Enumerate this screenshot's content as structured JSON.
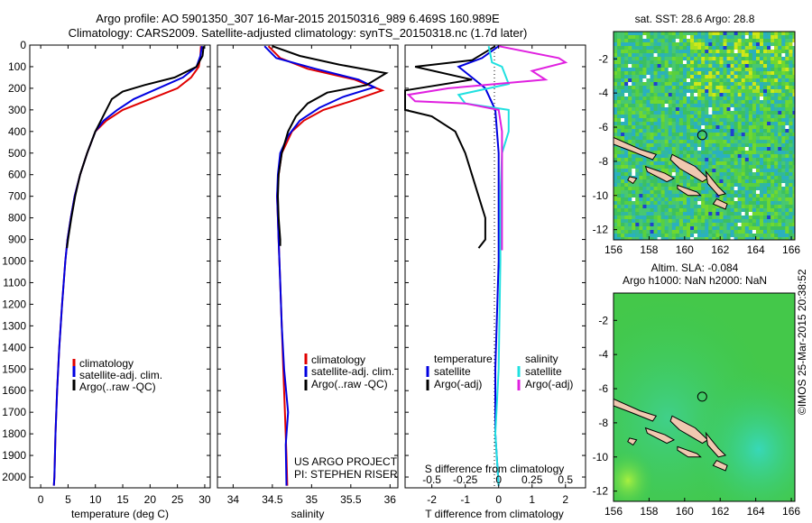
{
  "header": {
    "line1": "Argo profile: AO 5901350_307 16-Mar-2015 20150316_989 6.469S 160.989E",
    "line2": "Climatology: CARS2009. Satellite-adjusted climatology: synTS_20150318.nc (1.7d later)"
  },
  "colors": {
    "climatology": "#e00000",
    "satellite": "#0000e0",
    "argo": "#000000",
    "sal_sat": "#20e0e0",
    "sal_argo": "#e020e0"
  },
  "chart_data": [
    {
      "type": "line",
      "xlabel": "temperature (deg C)",
      "ylabel": "",
      "xlim": [
        -2,
        31
      ],
      "ylim": [
        2050,
        0
      ],
      "xticks": [
        0,
        5,
        10,
        15,
        20,
        25,
        30
      ],
      "yticks": [
        0,
        100,
        200,
        300,
        400,
        500,
        600,
        700,
        800,
        900,
        1000,
        1100,
        1200,
        1300,
        1400,
        1500,
        1600,
        1700,
        1800,
        1900,
        2000
      ],
      "legend": [
        "climatology",
        "satellite-adj. clim.",
        "Argo(..raw -QC)"
      ],
      "series": [
        {
          "name": "climatology",
          "color": "#e00000",
          "points": [
            [
              29.3,
              5
            ],
            [
              29.2,
              50
            ],
            [
              28.9,
              100
            ],
            [
              27.5,
              150
            ],
            [
              25,
              200
            ],
            [
              20,
              250
            ],
            [
              15,
              300
            ],
            [
              12,
              350
            ],
            [
              10,
              400
            ],
            [
              8.5,
              500
            ],
            [
              7.2,
              600
            ],
            [
              6.2,
              700
            ],
            [
              5.5,
              800
            ],
            [
              4.9,
              900
            ],
            [
              4.5,
              1000
            ],
            [
              3.9,
              1200
            ],
            [
              3.4,
              1400
            ],
            [
              3.0,
              1600
            ],
            [
              2.7,
              1800
            ],
            [
              2.5,
              2000
            ],
            [
              2.4,
              2040
            ]
          ]
        },
        {
          "name": "satellite-adj. clim.",
          "color": "#0000e0",
          "points": [
            [
              29.5,
              5
            ],
            [
              29.2,
              50
            ],
            [
              28.5,
              100
            ],
            [
              26,
              150
            ],
            [
              21.5,
              200
            ],
            [
              17,
              250
            ],
            [
              14,
              300
            ],
            [
              11.5,
              350
            ],
            [
              10,
              400
            ],
            [
              8.5,
              500
            ],
            [
              7.2,
              600
            ],
            [
              6.2,
              700
            ],
            [
              5.5,
              800
            ],
            [
              4.9,
              900
            ],
            [
              4.5,
              1000
            ],
            [
              3.9,
              1200
            ],
            [
              3.4,
              1400
            ],
            [
              3.0,
              1600
            ],
            [
              2.7,
              1800
            ],
            [
              2.5,
              2000
            ],
            [
              2.4,
              2040
            ]
          ]
        },
        {
          "name": "Argo(..raw -QC)",
          "color": "#000000",
          "points": [
            [
              29.8,
              5
            ],
            [
              29.6,
              50
            ],
            [
              28.5,
              100
            ],
            [
              24.5,
              150
            ],
            [
              19,
              185
            ],
            [
              15,
              215
            ],
            [
              13,
              250
            ],
            [
              12,
              300
            ],
            [
              11,
              350
            ],
            [
              10,
              400
            ],
            [
              8.5,
              500
            ],
            [
              7.2,
              600
            ],
            [
              6.3,
              700
            ],
            [
              5.6,
              800
            ],
            [
              5.0,
              900
            ],
            [
              4.8,
              940
            ]
          ]
        }
      ]
    },
    {
      "type": "line",
      "xlabel": "salinity",
      "ylabel": "",
      "xlim": [
        33.8,
        36.1
      ],
      "ylim": [
        2050,
        0
      ],
      "xticks": [
        34,
        34.5,
        35,
        35.5,
        36
      ],
      "legend": [
        "climatology",
        "satellite-adj. clim.",
        "Argo(..raw -QC)"
      ],
      "annotation": [
        "US ARGO PROJECT",
        "PI: STEPHEN RISER"
      ],
      "series": [
        {
          "name": "climatology",
          "color": "#e00000",
          "points": [
            [
              34.45,
              5
            ],
            [
              34.6,
              60
            ],
            [
              34.95,
              110
            ],
            [
              35.55,
              160
            ],
            [
              35.9,
              210
            ],
            [
              35.5,
              260
            ],
            [
              35.15,
              300
            ],
            [
              34.9,
              350
            ],
            [
              34.75,
              400
            ],
            [
              34.62,
              500
            ],
            [
              34.58,
              600
            ],
            [
              34.56,
              700
            ],
            [
              34.57,
              800
            ],
            [
              34.58,
              900
            ],
            [
              34.6,
              1100
            ],
            [
              34.62,
              1300
            ],
            [
              34.64,
              1500
            ],
            [
              34.66,
              1700
            ],
            [
              34.68,
              1900
            ],
            [
              34.69,
              2040
            ]
          ]
        },
        {
          "name": "satellite-adj. clim.",
          "color": "#0000e0",
          "points": [
            [
              34.4,
              5
            ],
            [
              34.55,
              60
            ],
            [
              35.05,
              110
            ],
            [
              35.6,
              160
            ],
            [
              35.8,
              195
            ],
            [
              35.4,
              240
            ],
            [
              35.1,
              290
            ],
            [
              34.85,
              350
            ],
            [
              34.7,
              420
            ],
            [
              34.6,
              500
            ],
            [
              34.57,
              600
            ],
            [
              34.56,
              700
            ],
            [
              34.57,
              800
            ],
            [
              34.58,
              900
            ],
            [
              34.6,
              1100
            ],
            [
              34.62,
              1300
            ],
            [
              34.65,
              1500
            ],
            [
              34.7,
              1700
            ],
            [
              34.67,
              1850
            ],
            [
              34.68,
              2040
            ]
          ]
        },
        {
          "name": "Argo(..raw -QC)",
          "color": "#000000",
          "points": [
            [
              34.5,
              5
            ],
            [
              34.85,
              50
            ],
            [
              35.35,
              90
            ],
            [
              35.95,
              130
            ],
            [
              35.7,
              185
            ],
            [
              35.2,
              220
            ],
            [
              34.95,
              270
            ],
            [
              34.8,
              330
            ],
            [
              34.7,
              400
            ],
            [
              34.62,
              500
            ],
            [
              34.58,
              600
            ],
            [
              34.57,
              700
            ],
            [
              34.58,
              800
            ],
            [
              34.6,
              900
            ],
            [
              34.6,
              930
            ]
          ]
        }
      ]
    },
    {
      "type": "line",
      "xlabel": "T difference from climatology",
      "xlabel2": "S difference from climatology",
      "xlim": [
        -2.8,
        2.6
      ],
      "ylim": [
        2050,
        0
      ],
      "xticks": [
        -2,
        -1,
        0,
        1,
        2
      ],
      "xticks_s": [
        -0.5,
        -0.25,
        0,
        0.25,
        0.5
      ],
      "legend_left_title": "temperature",
      "legend_right_title": "salinity",
      "legend_left": [
        "satellite",
        "Argo(-adj)"
      ],
      "legend_right": [
        "satellite",
        "Argo(-adj)"
      ],
      "series": [
        {
          "name": "temperature satellite",
          "color": "#0000e0",
          "points": [
            [
              0,
              5
            ],
            [
              -0.5,
              60
            ],
            [
              -1.2,
              100
            ],
            [
              -0.8,
              150
            ],
            [
              -0.4,
              200
            ],
            [
              -0.1,
              300
            ],
            [
              0,
              500
            ],
            [
              0,
              1000
            ],
            [
              -0.1,
              1500
            ],
            [
              -0.1,
              1800
            ],
            [
              0,
              2040
            ]
          ]
        },
        {
          "name": "temperature Argo(-adj)",
          "color": "#000000",
          "points": [
            [
              -0.1,
              5
            ],
            [
              -0.8,
              70
            ],
            [
              -2.5,
              100
            ],
            [
              -0.8,
              160
            ],
            [
              -2.8,
              210
            ],
            [
              -2.8,
              280
            ],
            [
              -2.8,
              300
            ],
            [
              -2.0,
              330
            ],
            [
              -1.3,
              400
            ],
            [
              -1.0,
              500
            ],
            [
              -0.8,
              600
            ],
            [
              -0.6,
              700
            ],
            [
              -0.4,
              800
            ],
            [
              -0.4,
              900
            ],
            [
              -0.6,
              940
            ]
          ]
        },
        {
          "name": "salinity satellite",
          "color": "#20e0e0",
          "points": [
            [
              -0.3,
              5
            ],
            [
              -0.2,
              80
            ],
            [
              0.1,
              100
            ],
            [
              0.3,
              180
            ],
            [
              -1.2,
              230
            ],
            [
              -1.0,
              270
            ],
            [
              0.3,
              300
            ],
            [
              0.3,
              400
            ],
            [
              0.1,
              500
            ],
            [
              0.05,
              700
            ],
            [
              0.05,
              1000
            ],
            [
              0,
              1500
            ],
            [
              -0.1,
              1800
            ],
            [
              0,
              2040
            ]
          ]
        },
        {
          "name": "salinity Argo(-adj)",
          "color": "#e020e0",
          "points": [
            [
              0,
              5
            ],
            [
              1.8,
              60
            ],
            [
              2.0,
              80
            ],
            [
              1.0,
              120
            ],
            [
              1.4,
              160
            ],
            [
              -1.5,
              200
            ],
            [
              -2.7,
              230
            ],
            [
              -2.5,
              260
            ],
            [
              -1.0,
              270
            ],
            [
              0,
              300
            ],
            [
              0.1,
              400
            ],
            [
              0.1,
              600
            ],
            [
              0.1,
              800
            ],
            [
              0.1,
              900
            ],
            [
              0.1,
              950
            ]
          ]
        }
      ]
    }
  ],
  "maps": {
    "sst_title": "sat. SST: 28.6  Argo: 28.8",
    "sla_title1": "Altim. SLA: -0.084",
    "sla_title2": "Argo h1000: NaN h2000: NaN",
    "xticks": [
      156,
      158,
      160,
      162,
      164,
      166
    ],
    "yticks": [
      -2,
      -4,
      -6,
      -8,
      -10,
      -12
    ],
    "xlim": [
      156,
      166.2
    ],
    "ylim": [
      -12.6,
      -0.4
    ],
    "argo_lon": 160.989,
    "argo_lat": -6.469
  },
  "credit": "©IMOS 25-Mar-2015 20:38:52"
}
